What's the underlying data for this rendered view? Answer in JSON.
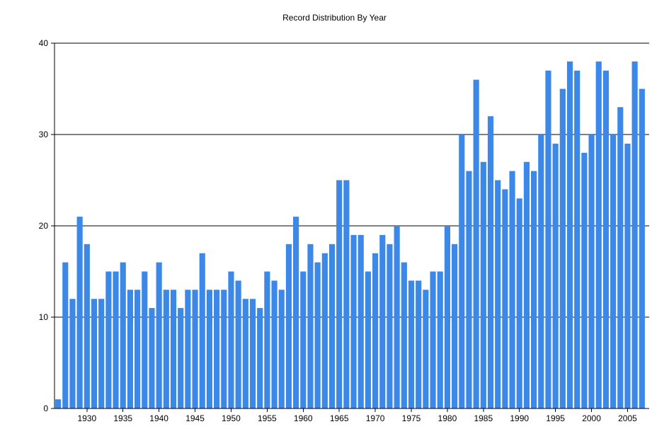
{
  "chart_data": {
    "type": "bar",
    "title": "Record Distribution By Year",
    "xlabel": "",
    "ylabel": "",
    "ylim": [
      0,
      40
    ],
    "y_ticks": [
      0,
      10,
      20,
      30,
      40
    ],
    "x_tick_labels": [
      1930,
      1935,
      1940,
      1945,
      1950,
      1955,
      1960,
      1965,
      1970,
      1975,
      1980,
      1985,
      1990,
      1995,
      2000,
      2005
    ],
    "grid": true,
    "bar_color": "#3C88E8",
    "categories": [
      1926,
      1927,
      1928,
      1929,
      1930,
      1931,
      1932,
      1933,
      1934,
      1935,
      1936,
      1937,
      1938,
      1939,
      1940,
      1941,
      1942,
      1943,
      1944,
      1945,
      1946,
      1947,
      1948,
      1949,
      1950,
      1951,
      1952,
      1953,
      1954,
      1955,
      1956,
      1957,
      1958,
      1959,
      1960,
      1961,
      1962,
      1963,
      1964,
      1965,
      1966,
      1967,
      1968,
      1969,
      1970,
      1971,
      1972,
      1973,
      1974,
      1975,
      1976,
      1977,
      1978,
      1979,
      1980,
      1981,
      1982,
      1983,
      1984,
      1985,
      1986,
      1987,
      1988,
      1989,
      1990,
      1991,
      1992,
      1993,
      1994,
      1995,
      1996,
      1997,
      1998,
      1999,
      2000,
      2001,
      2002,
      2003,
      2004,
      2005,
      2006,
      2007
    ],
    "values": [
      1,
      16,
      12,
      21,
      18,
      12,
      12,
      15,
      15,
      16,
      13,
      13,
      15,
      11,
      16,
      13,
      13,
      11,
      13,
      13,
      17,
      13,
      13,
      13,
      15,
      14,
      12,
      12,
      11,
      15,
      14,
      13,
      18,
      21,
      15,
      18,
      16,
      17,
      18,
      25,
      25,
      19,
      19,
      15,
      17,
      19,
      18,
      20,
      16,
      14,
      14,
      13,
      15,
      15,
      20,
      18,
      30,
      26,
      36,
      27,
      32,
      25,
      24,
      26,
      23,
      27,
      26,
      30,
      37,
      29,
      35,
      38,
      37,
      28,
      30,
      38,
      37,
      30,
      33,
      29,
      38,
      35
    ]
  }
}
